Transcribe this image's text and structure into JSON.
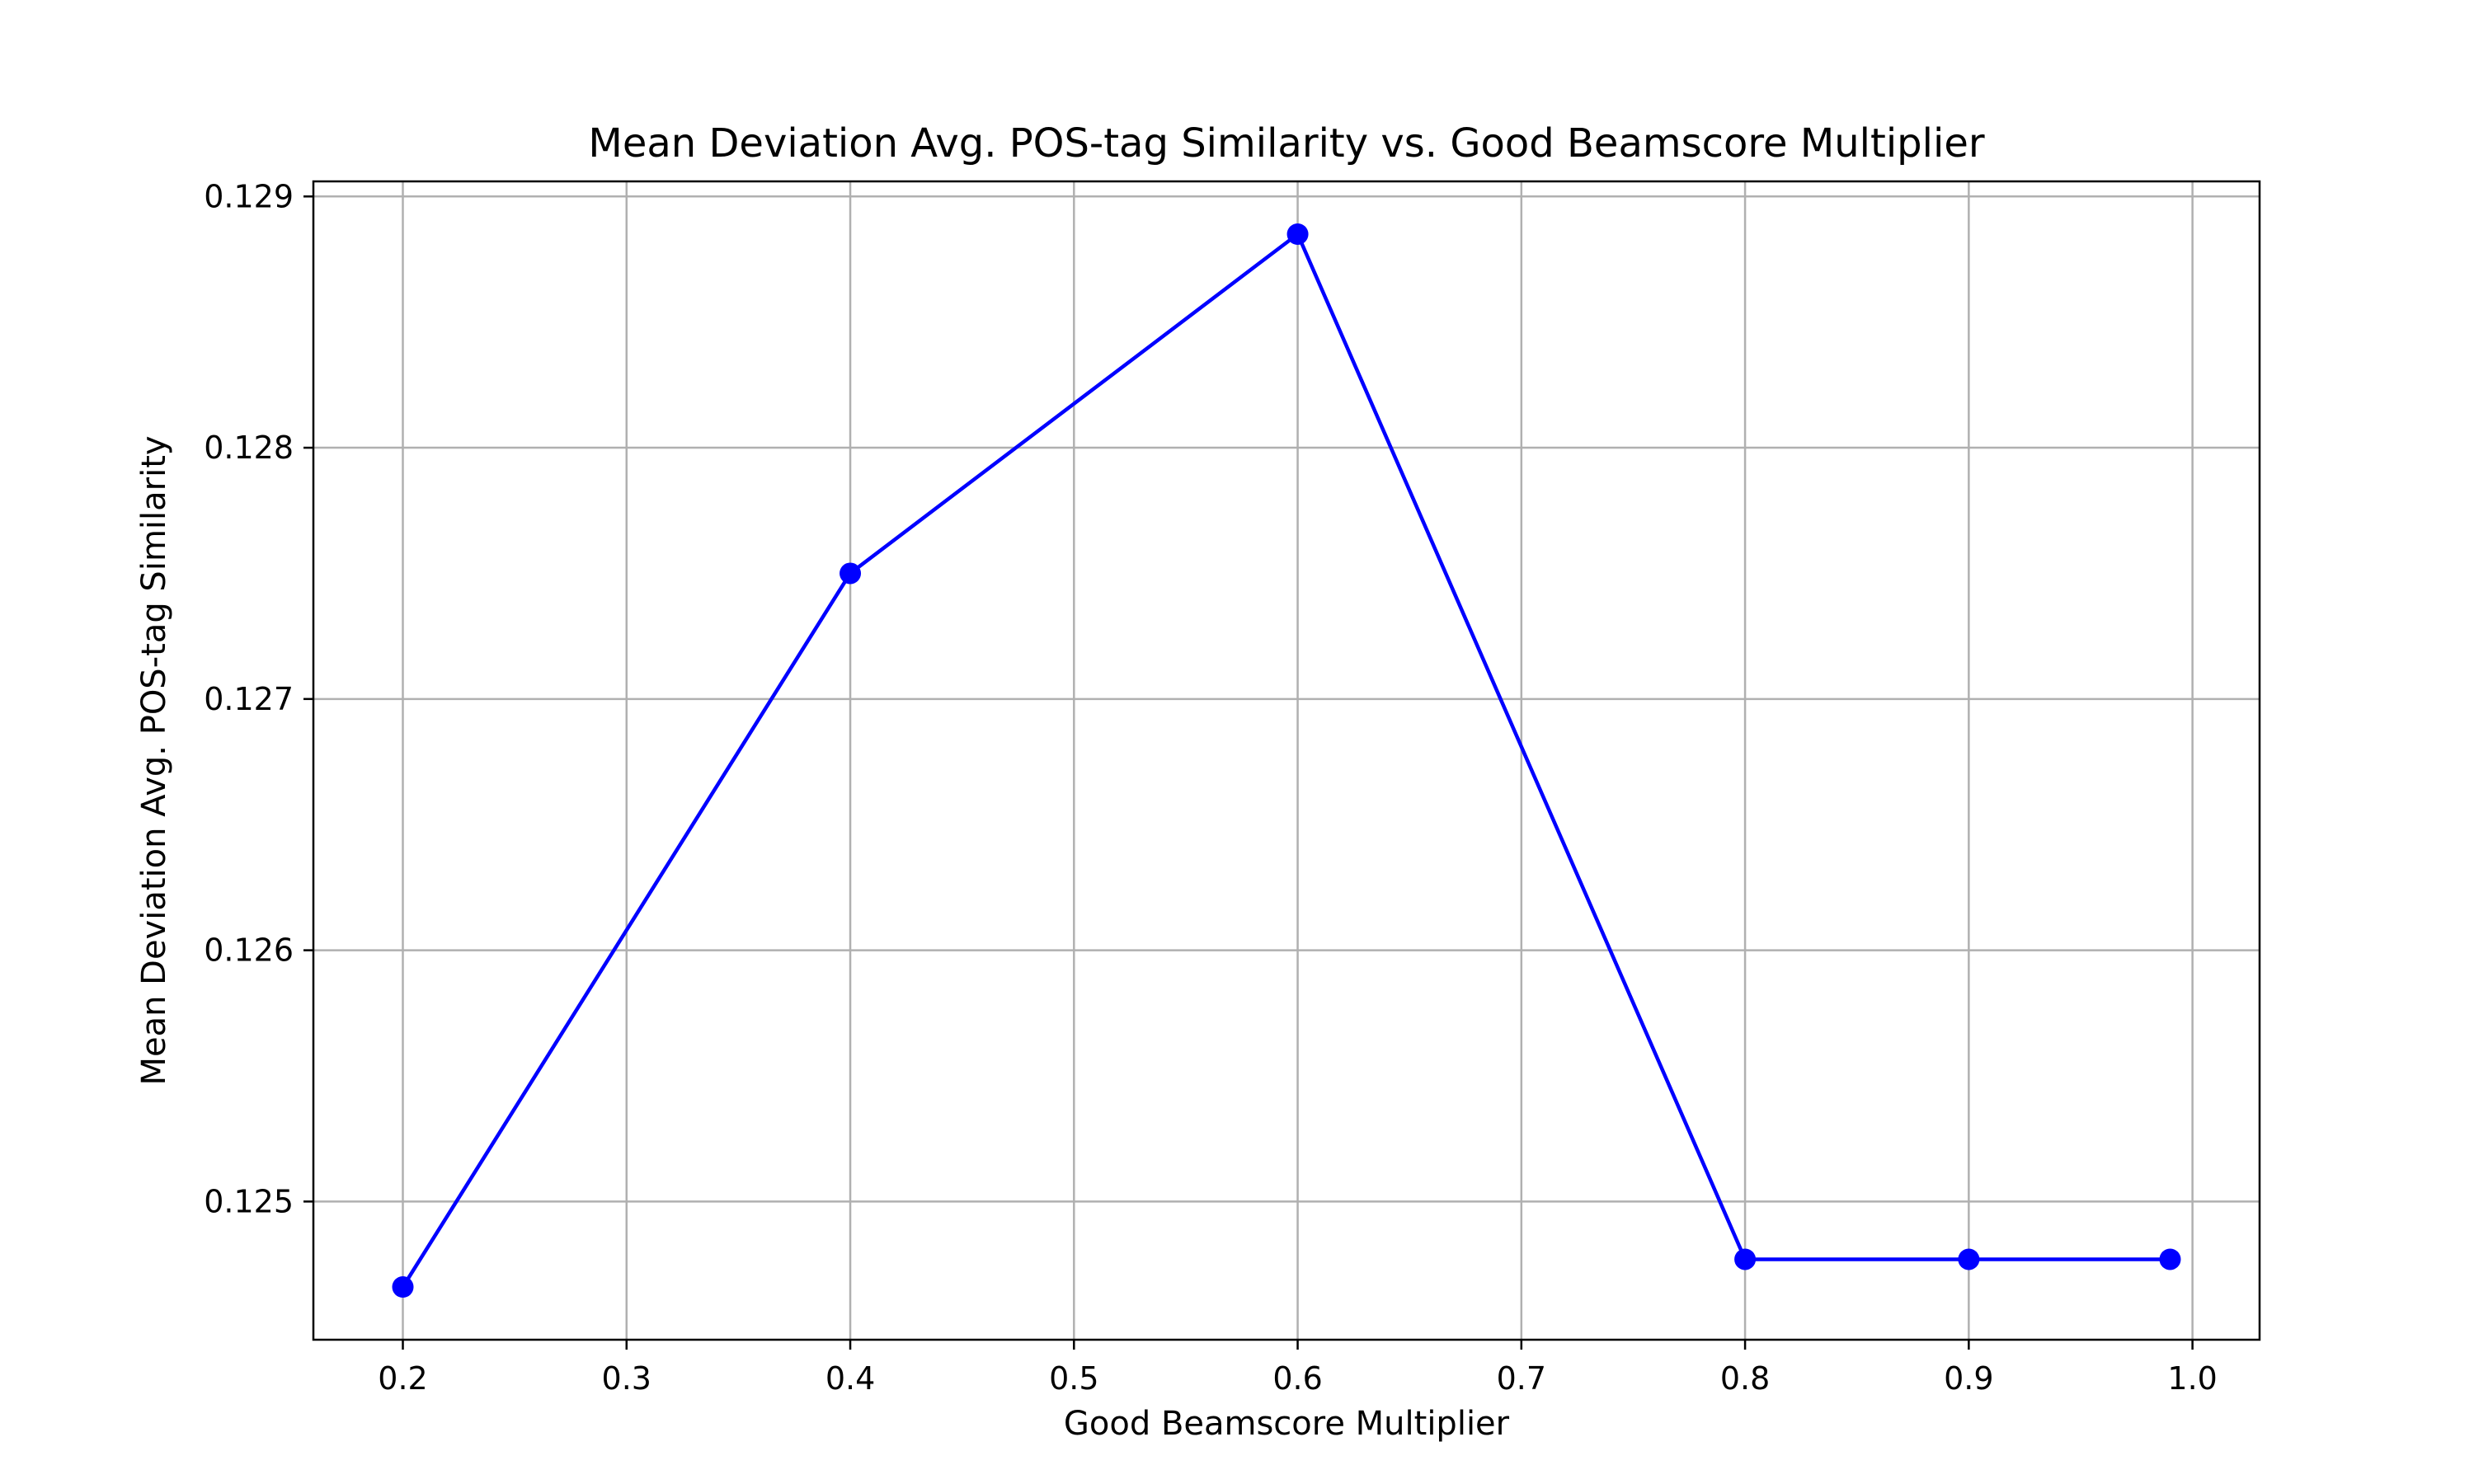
{
  "chart_data": {
    "type": "line",
    "title": "Mean Deviation Avg. POS-tag Similarity vs. Good Beamscore Multiplier",
    "xlabel": "Good Beamscore Multiplier",
    "ylabel": "Mean Deviation Avg. POS-tag Similarity",
    "x": [
      0.2,
      0.4,
      0.6,
      0.8,
      0.9,
      0.99
    ],
    "series": [
      {
        "values": [
          0.12466,
          0.1275,
          0.12885,
          0.12477,
          0.12477,
          0.12477
        ],
        "color": "#0000ff",
        "marker": "circle"
      }
    ],
    "xlim": [
      0.16,
      1.03
    ],
    "ylim": [
      0.12445,
      0.12906
    ],
    "xticks": [
      0.2,
      0.3,
      0.4,
      0.5,
      0.6,
      0.7,
      0.8,
      0.9,
      1.0
    ],
    "xtick_labels": [
      "0.2",
      "0.3",
      "0.4",
      "0.5",
      "0.6",
      "0.7",
      "0.8",
      "0.9",
      "1.0"
    ],
    "yticks": [
      0.125,
      0.126,
      0.127,
      0.128,
      0.129
    ],
    "ytick_labels": [
      "0.125",
      "0.126",
      "0.127",
      "0.128",
      "0.129"
    ],
    "grid": true,
    "grid_color": "#b0b0b0"
  }
}
